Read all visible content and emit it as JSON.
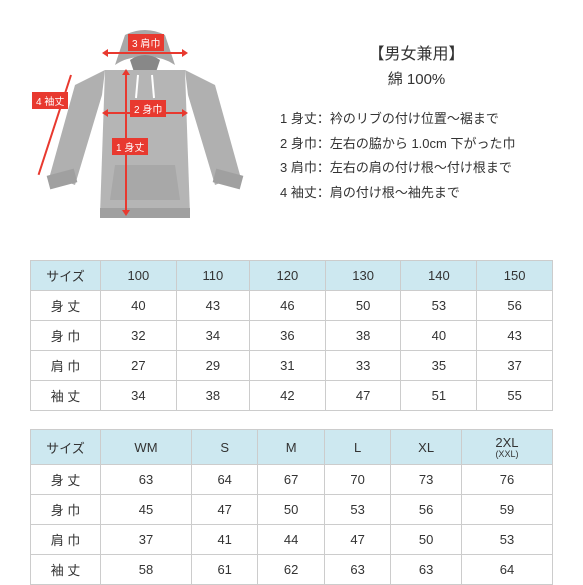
{
  "header": {
    "title": "【男女兼用】",
    "material": "綿 100%"
  },
  "measurements": {
    "list": [
      "1 身丈：衿のリブの付け位置～裾まで",
      "2 身巾：左右の脇から 1.0cm 下がった巾",
      "3 肩巾：左右の肩の付け根～付け根まで",
      "4 袖丈：肩の付け根～袖先まで"
    ]
  },
  "diagram": {
    "labels": {
      "shoulder": "3 肩巾",
      "sleeve": "4 袖丈",
      "width": "2 身巾",
      "length": "1 身丈"
    },
    "colors": {
      "tag_bg": "#e8392f",
      "tag_text": "#ffffff",
      "hoodie": "#b5b5b5"
    }
  },
  "table_kids": {
    "header_label": "サイズ",
    "sizes": [
      "100",
      "110",
      "120",
      "130",
      "140",
      "150"
    ],
    "rows": [
      {
        "label": "身 丈",
        "values": [
          "40",
          "43",
          "46",
          "50",
          "53",
          "56"
        ]
      },
      {
        "label": "身 巾",
        "values": [
          "32",
          "34",
          "36",
          "38",
          "40",
          "43"
        ]
      },
      {
        "label": "肩 巾",
        "values": [
          "27",
          "29",
          "31",
          "33",
          "35",
          "37"
        ]
      },
      {
        "label": "袖 丈",
        "values": [
          "34",
          "38",
          "42",
          "47",
          "51",
          "55"
        ]
      }
    ]
  },
  "table_adult": {
    "header_label": "サイズ",
    "sizes": [
      "WM",
      "S",
      "M",
      "L",
      "XL"
    ],
    "xxl_main": "2XL",
    "xxl_sub": "(XXL)",
    "rows": [
      {
        "label": "身 丈",
        "values": [
          "63",
          "64",
          "67",
          "70",
          "73",
          "76"
        ]
      },
      {
        "label": "身 巾",
        "values": [
          "45",
          "47",
          "50",
          "53",
          "56",
          "59"
        ]
      },
      {
        "label": "肩 巾",
        "values": [
          "37",
          "41",
          "44",
          "47",
          "50",
          "53"
        ]
      },
      {
        "label": "袖 丈",
        "values": [
          "58",
          "61",
          "62",
          "63",
          "63",
          "64"
        ]
      }
    ]
  },
  "style": {
    "table_header_bg": "#cde8f0",
    "border_color": "#cccccc",
    "text_color": "#333333",
    "background": "#ffffff"
  }
}
